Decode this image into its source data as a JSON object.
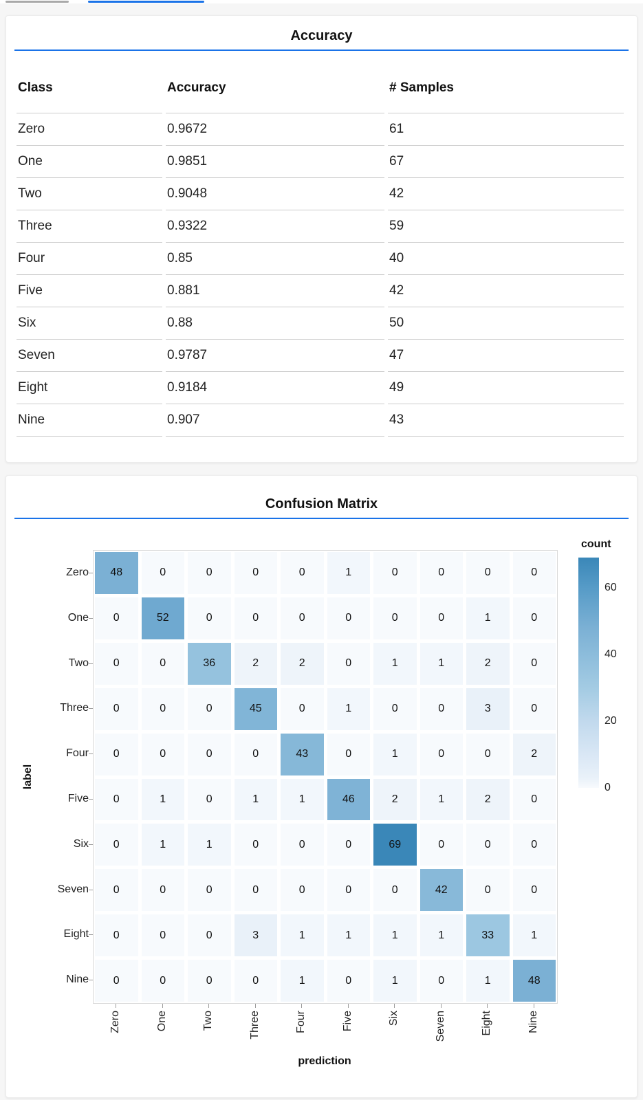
{
  "topbar": {
    "gray_indicator_color": "#a9a9a9",
    "blue_indicator_color": "#1a73e8"
  },
  "accent_color": "#1a73e8",
  "chart_data": [
    {
      "type": "table",
      "title": "Accuracy",
      "columns": [
        "Class",
        "Accuracy",
        "# Samples"
      ],
      "rows": [
        [
          "Zero",
          "0.9672",
          "61"
        ],
        [
          "One",
          "0.9851",
          "67"
        ],
        [
          "Two",
          "0.9048",
          "42"
        ],
        [
          "Three",
          "0.9322",
          "59"
        ],
        [
          "Four",
          "0.85",
          "40"
        ],
        [
          "Five",
          "0.881",
          "42"
        ],
        [
          "Six",
          "0.88",
          "50"
        ],
        [
          "Seven",
          "0.9787",
          "47"
        ],
        [
          "Eight",
          "0.9184",
          "49"
        ],
        [
          "Nine",
          "0.907",
          "43"
        ]
      ]
    },
    {
      "type": "heatmap",
      "title": "Confusion Matrix",
      "xlabel": "prediction",
      "ylabel": "label",
      "legend_title": "count",
      "categories": [
        "Zero",
        "One",
        "Two",
        "Three",
        "Four",
        "Five",
        "Six",
        "Seven",
        "Eight",
        "Nine"
      ],
      "matrix": [
        [
          48,
          0,
          0,
          0,
          0,
          1,
          0,
          0,
          0,
          0
        ],
        [
          0,
          52,
          0,
          0,
          0,
          0,
          0,
          0,
          1,
          0
        ],
        [
          0,
          0,
          36,
          2,
          2,
          0,
          1,
          1,
          2,
          0
        ],
        [
          0,
          0,
          0,
          45,
          0,
          1,
          0,
          0,
          3,
          0
        ],
        [
          0,
          0,
          0,
          0,
          43,
          0,
          1,
          0,
          0,
          2
        ],
        [
          0,
          1,
          0,
          1,
          1,
          46,
          2,
          1,
          2,
          0
        ],
        [
          0,
          1,
          1,
          0,
          0,
          0,
          69,
          0,
          0,
          0
        ],
        [
          0,
          0,
          0,
          0,
          0,
          0,
          0,
          42,
          0,
          0
        ],
        [
          0,
          0,
          0,
          3,
          1,
          1,
          1,
          1,
          33,
          1
        ],
        [
          0,
          0,
          0,
          0,
          1,
          0,
          1,
          0,
          1,
          48
        ]
      ],
      "color_domain": [
        0,
        69
      ],
      "colorbar_ticks": [
        60,
        40,
        20,
        0
      ],
      "colormap_stops": [
        [
          0,
          "#f7fafd"
        ],
        [
          3,
          "#e9f1f9"
        ],
        [
          10,
          "#d9e7f5"
        ],
        [
          20,
          "#c1d9ed"
        ],
        [
          30,
          "#a3cbe3"
        ],
        [
          40,
          "#8cbcdb"
        ],
        [
          48,
          "#7bb0d4"
        ],
        [
          60,
          "#569bc7"
        ],
        [
          69,
          "#3a87b8"
        ]
      ]
    }
  ]
}
